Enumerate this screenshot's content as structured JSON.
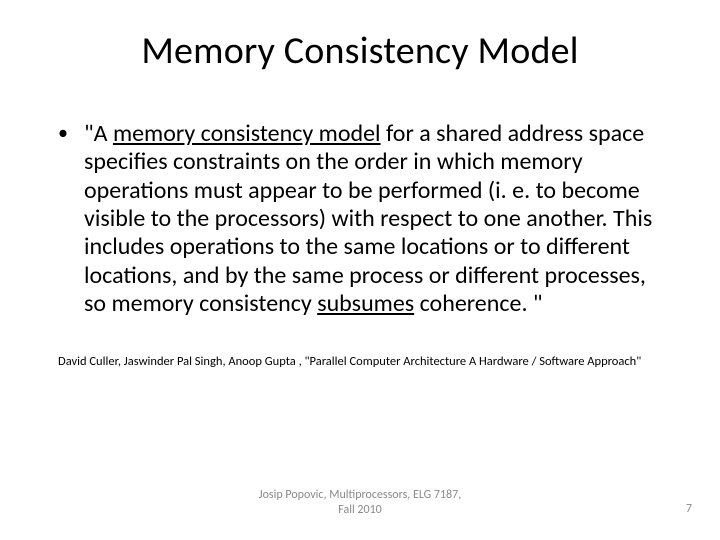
{
  "title": "Memory Consistency Model",
  "bullet": {
    "mark": "•",
    "pre": "\"A ",
    "underline1": "memory consistency model",
    "mid": " for a shared address space specifies constraints on the order in which memory operations must appear to be performed (i. e. to become visible to the processors) with respect to one another. This includes operations to the same locations or to different locations, and by the same process or different processes, so memory consistency ",
    "underline2": "subsumes",
    "post": " coherence. \""
  },
  "citation": "David Culler, Jaswinder Pal Singh, Anoop Gupta , \"Parallel Computer Architecture A Hardware / Software Approach\"",
  "footer_line1": "Josip Popovic, Multiprocessors, ELG 7187,",
  "footer_line2": "Fall 2010",
  "page_number": "7",
  "colors": {
    "text": "#000000",
    "footer": "#8a8a8a",
    "background": "#ffffff"
  }
}
